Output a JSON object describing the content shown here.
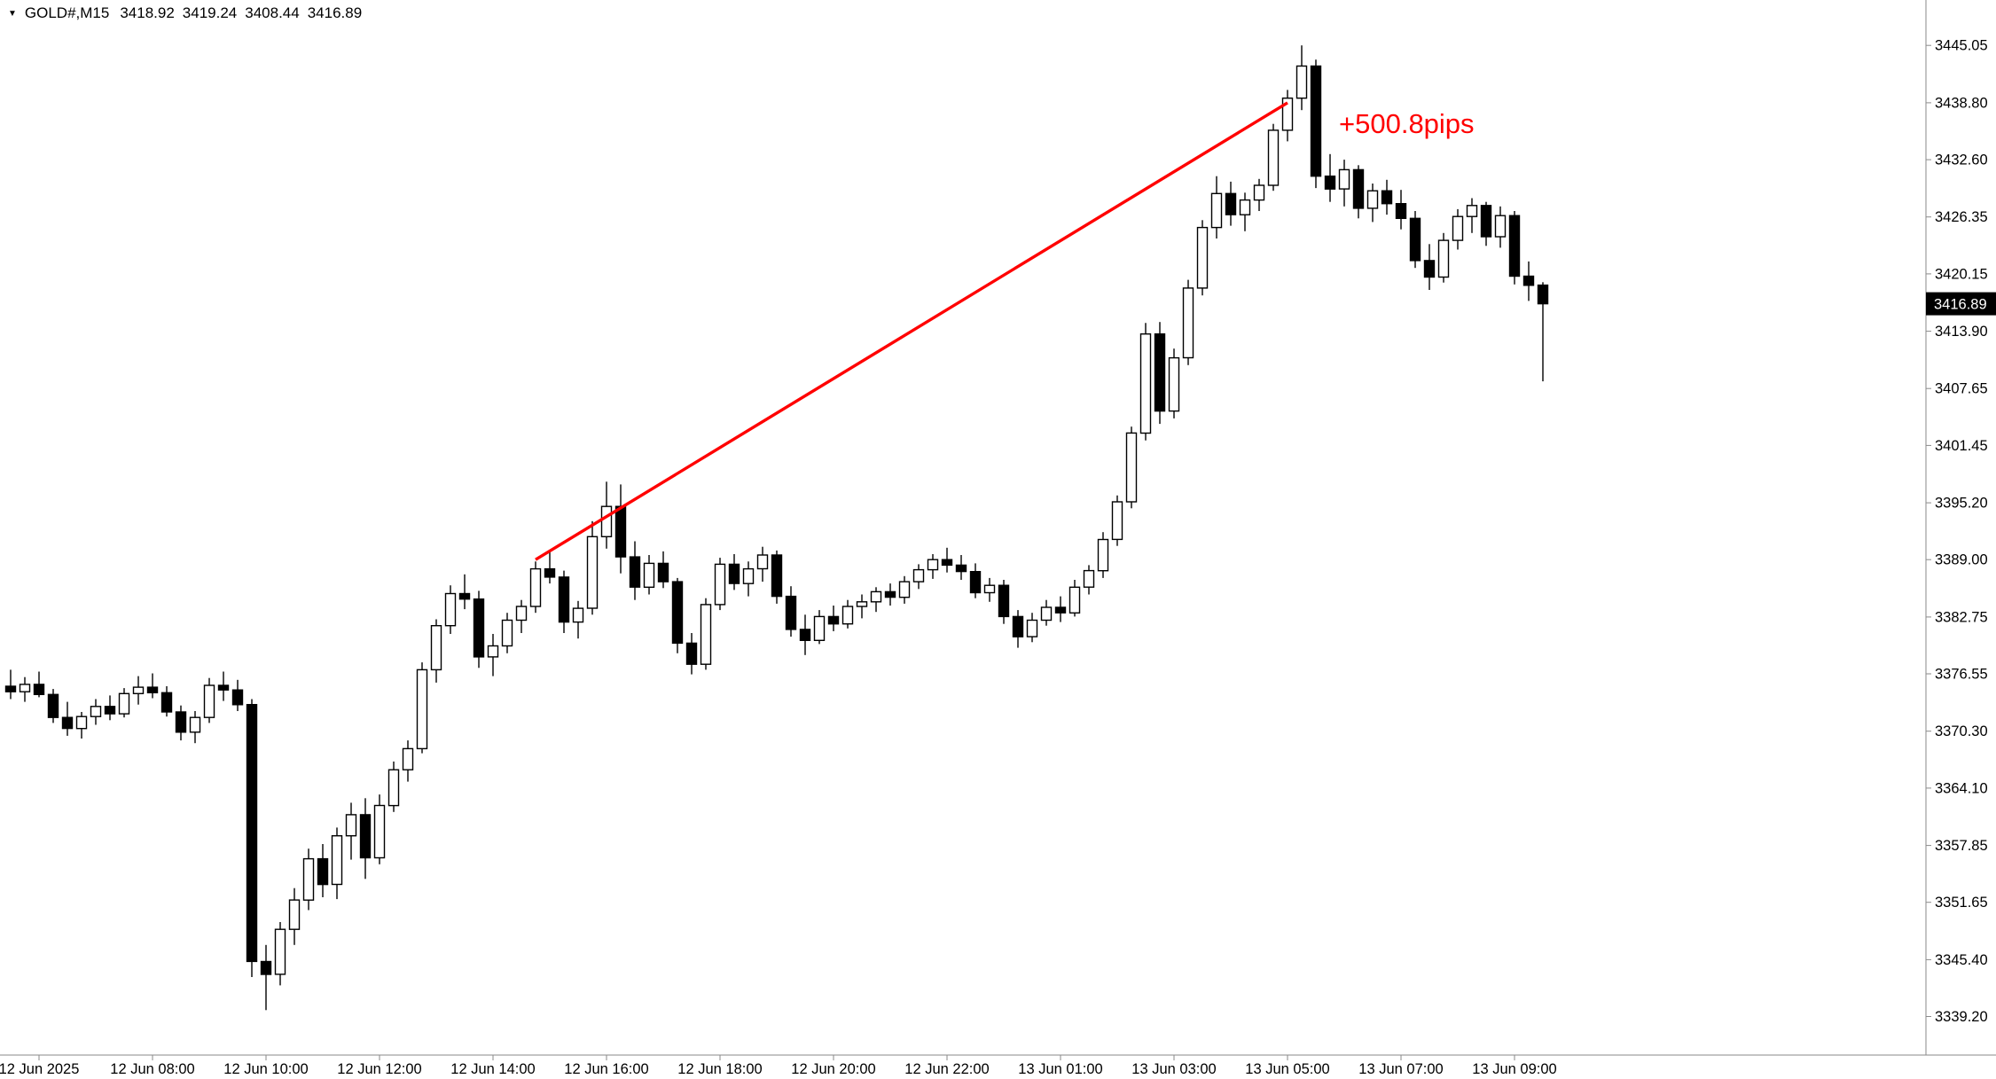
{
  "header": {
    "marker_icon": "▼",
    "symbol_period": "GOLD#,M15",
    "open": "3418.92",
    "high": "3419.24",
    "low": "3408.44",
    "close": "3416.89"
  },
  "colors": {
    "background": "#ffffff",
    "axis_line": "#8a8a8a",
    "text": "#000000",
    "bull_fill": "#ffffff",
    "bear_fill": "#000000",
    "candle_stroke": "#000000",
    "trendline": "#ff0000",
    "annotation": "#ff0000",
    "price_badge_bg": "#000000",
    "price_badge_text": "#ffffff"
  },
  "price_axis": {
    "labels": [
      "3445.05",
      "3438.80",
      "3432.60",
      "3426.35",
      "3420.15",
      "3413.90",
      "3407.65",
      "3401.45",
      "3395.20",
      "3389.00",
      "3382.75",
      "3376.55",
      "3370.30",
      "3364.10",
      "3357.85",
      "3351.65",
      "3345.40",
      "3339.20"
    ],
    "current": "3416.89",
    "current_value": 3416.89
  },
  "time_axis": {
    "labels": [
      {
        "text": "12 Jun 2025",
        "i": 2
      },
      {
        "text": "12 Jun 08:00",
        "i": 10
      },
      {
        "text": "12 Jun 10:00",
        "i": 18
      },
      {
        "text": "12 Jun 12:00",
        "i": 26
      },
      {
        "text": "12 Jun 14:00",
        "i": 34
      },
      {
        "text": "12 Jun 16:00",
        "i": 42
      },
      {
        "text": "12 Jun 18:00",
        "i": 50
      },
      {
        "text": "12 Jun 20:00",
        "i": 58
      },
      {
        "text": "12 Jun 22:00",
        "i": 66
      },
      {
        "text": "13 Jun 01:00",
        "i": 74
      },
      {
        "text": "13 Jun 03:00",
        "i": 82
      },
      {
        "text": "13 Jun 05:00",
        "i": 90
      },
      {
        "text": "13 Jun 07:00",
        "i": 98
      },
      {
        "text": "13 Jun 09:00",
        "i": 106
      }
    ]
  },
  "chart_data": {
    "type": "candlestick",
    "title": "GOLD#,M15",
    "symbol": "GOLD#",
    "timeframe": "M15",
    "grid": "off",
    "price_range": {
      "min": 3335.0,
      "max": 3450.0
    },
    "current_bar": {
      "open": 3418.92,
      "high": 3419.24,
      "low": 3408.44,
      "close": 3416.89
    },
    "annotations": {
      "trendline": {
        "from_index": 37,
        "from_price": 3389.0,
        "to_index": 90,
        "to_price": 3438.8,
        "label": "+500.8pips"
      }
    },
    "candles": [
      [
        3375.2,
        3377.0,
        3373.8,
        3374.6
      ],
      [
        3374.6,
        3376.2,
        3373.5,
        3375.4
      ],
      [
        3375.4,
        3376.8,
        3374.0,
        3374.3
      ],
      [
        3374.3,
        3374.9,
        3371.2,
        3371.8
      ],
      [
        3371.8,
        3373.5,
        3369.8,
        3370.6
      ],
      [
        3370.6,
        3372.4,
        3369.5,
        3371.9
      ],
      [
        3371.9,
        3373.8,
        3371.0,
        3373.0
      ],
      [
        3373.0,
        3374.2,
        3371.5,
        3372.2
      ],
      [
        3372.2,
        3375.0,
        3371.8,
        3374.4
      ],
      [
        3374.4,
        3376.3,
        3373.2,
        3375.1
      ],
      [
        3375.1,
        3376.6,
        3373.9,
        3374.5
      ],
      [
        3374.5,
        3375.2,
        3371.9,
        3372.4
      ],
      [
        3372.4,
        3373.1,
        3369.3,
        3370.2
      ],
      [
        3370.2,
        3372.5,
        3369.0,
        3371.8
      ],
      [
        3371.8,
        3376.1,
        3371.2,
        3375.3
      ],
      [
        3375.3,
        3376.8,
        3373.6,
        3374.8
      ],
      [
        3374.8,
        3375.9,
        3372.5,
        3373.2
      ],
      [
        3373.2,
        3373.8,
        3343.5,
        3345.2
      ],
      [
        3345.2,
        3347.0,
        3339.9,
        3343.8
      ],
      [
        3343.8,
        3349.5,
        3342.6,
        3348.7
      ],
      [
        3348.7,
        3353.2,
        3347.0,
        3351.9
      ],
      [
        3351.9,
        3357.5,
        3350.8,
        3356.4
      ],
      [
        3356.4,
        3358.0,
        3352.2,
        3353.6
      ],
      [
        3353.6,
        3359.8,
        3352.0,
        3358.9
      ],
      [
        3358.9,
        3362.5,
        3356.3,
        3361.2
      ],
      [
        3361.2,
        3363.0,
        3354.2,
        3356.5
      ],
      [
        3356.5,
        3363.4,
        3355.8,
        3362.2
      ],
      [
        3362.2,
        3367.0,
        3361.5,
        3366.1
      ],
      [
        3366.1,
        3369.3,
        3364.8,
        3368.4
      ],
      [
        3368.4,
        3377.8,
        3367.9,
        3377.0
      ],
      [
        3377.0,
        3382.5,
        3375.6,
        3381.8
      ],
      [
        3381.8,
        3386.2,
        3380.9,
        3385.3
      ],
      [
        3385.3,
        3387.4,
        3383.6,
        3384.7
      ],
      [
        3384.7,
        3385.6,
        3377.2,
        3378.4
      ],
      [
        3378.4,
        3380.9,
        3376.3,
        3379.6
      ],
      [
        3379.6,
        3383.2,
        3378.8,
        3382.4
      ],
      [
        3382.4,
        3384.6,
        3381.0,
        3383.9
      ],
      [
        3383.9,
        3388.8,
        3383.2,
        3388.0
      ],
      [
        3388.0,
        3389.8,
        3386.4,
        3387.1
      ],
      [
        3387.1,
        3387.8,
        3381.0,
        3382.2
      ],
      [
        3382.2,
        3384.5,
        3380.4,
        3383.7
      ],
      [
        3383.7,
        3393.2,
        3383.0,
        3391.5
      ],
      [
        3391.5,
        3397.5,
        3390.2,
        3394.8
      ],
      [
        3394.8,
        3397.2,
        3387.5,
        3389.3
      ],
      [
        3389.3,
        3391.0,
        3384.6,
        3386.0
      ],
      [
        3386.0,
        3389.5,
        3385.2,
        3388.6
      ],
      [
        3388.6,
        3389.9,
        3385.9,
        3386.6
      ],
      [
        3386.6,
        3387.0,
        3378.8,
        3379.9
      ],
      [
        3379.9,
        3381.0,
        3376.5,
        3377.6
      ],
      [
        3377.6,
        3384.8,
        3377.0,
        3384.1
      ],
      [
        3384.1,
        3389.2,
        3383.5,
        3388.5
      ],
      [
        3388.5,
        3389.6,
        3385.7,
        3386.4
      ],
      [
        3386.4,
        3388.8,
        3385.0,
        3388.0
      ],
      [
        3388.0,
        3390.4,
        3386.6,
        3389.5
      ],
      [
        3389.5,
        3390.0,
        3384.2,
        3385.0
      ],
      [
        3385.0,
        3386.1,
        3380.6,
        3381.4
      ],
      [
        3381.4,
        3383.0,
        3378.6,
        3380.2
      ],
      [
        3380.2,
        3383.5,
        3379.8,
        3382.8
      ],
      [
        3382.8,
        3384.0,
        3381.2,
        3382.0
      ],
      [
        3382.0,
        3384.6,
        3381.5,
        3383.9
      ],
      [
        3383.9,
        3385.2,
        3382.6,
        3384.4
      ],
      [
        3384.4,
        3386.0,
        3383.3,
        3385.5
      ],
      [
        3385.5,
        3386.4,
        3384.0,
        3384.9
      ],
      [
        3384.9,
        3387.2,
        3384.2,
        3386.6
      ],
      [
        3386.6,
        3388.5,
        3385.8,
        3387.9
      ],
      [
        3387.9,
        3389.6,
        3386.9,
        3389.0
      ],
      [
        3389.0,
        3390.3,
        3387.6,
        3388.4
      ],
      [
        3388.4,
        3389.5,
        3386.8,
        3387.7
      ],
      [
        3387.7,
        3388.6,
        3384.8,
        3385.4
      ],
      [
        3385.4,
        3387.0,
        3384.4,
        3386.2
      ],
      [
        3386.2,
        3386.8,
        3382.0,
        3382.8
      ],
      [
        3382.8,
        3383.5,
        3379.4,
        3380.6
      ],
      [
        3380.6,
        3383.2,
        3380.0,
        3382.4
      ],
      [
        3382.4,
        3384.6,
        3381.8,
        3383.8
      ],
      [
        3383.8,
        3385.0,
        3382.2,
        3383.2
      ],
      [
        3383.2,
        3386.8,
        3382.8,
        3386.0
      ],
      [
        3386.0,
        3388.4,
        3385.2,
        3387.8
      ],
      [
        3387.8,
        3392.0,
        3387.0,
        3391.2
      ],
      [
        3391.2,
        3396.0,
        3390.5,
        3395.3
      ],
      [
        3395.3,
        3403.5,
        3394.6,
        3402.8
      ],
      [
        3402.8,
        3414.8,
        3402.0,
        3413.6
      ],
      [
        3413.6,
        3414.9,
        3403.8,
        3405.2
      ],
      [
        3405.2,
        3412.0,
        3404.4,
        3411.0
      ],
      [
        3411.0,
        3419.5,
        3410.2,
        3418.6
      ],
      [
        3418.6,
        3426.0,
        3417.8,
        3425.2
      ],
      [
        3425.2,
        3430.8,
        3424.0,
        3428.9
      ],
      [
        3428.9,
        3430.2,
        3425.4,
        3426.6
      ],
      [
        3426.6,
        3429.0,
        3424.8,
        3428.2
      ],
      [
        3428.2,
        3430.5,
        3427.0,
        3429.8
      ],
      [
        3429.8,
        3436.5,
        3429.2,
        3435.8
      ],
      [
        3435.8,
        3440.2,
        3434.6,
        3439.3
      ],
      [
        3439.3,
        3445.05,
        3438.0,
        3442.8
      ],
      [
        3442.8,
        3443.5,
        3429.5,
        3430.8
      ],
      [
        3430.8,
        3433.2,
        3428.0,
        3429.4
      ],
      [
        3429.4,
        3432.6,
        3427.5,
        3431.5
      ],
      [
        3431.5,
        3432.0,
        3426.2,
        3427.3
      ],
      [
        3427.3,
        3430.0,
        3425.8,
        3429.2
      ],
      [
        3429.2,
        3430.4,
        3426.6,
        3427.8
      ],
      [
        3427.8,
        3429.3,
        3425.0,
        3426.2
      ],
      [
        3426.2,
        3427.0,
        3420.8,
        3421.6
      ],
      [
        3421.6,
        3423.4,
        3418.4,
        3419.8
      ],
      [
        3419.8,
        3424.6,
        3419.2,
        3423.8
      ],
      [
        3423.8,
        3427.2,
        3422.8,
        3426.4
      ],
      [
        3426.4,
        3428.4,
        3424.6,
        3427.6
      ],
      [
        3427.6,
        3428.0,
        3423.2,
        3424.2
      ],
      [
        3424.2,
        3427.5,
        3423.0,
        3426.5
      ],
      [
        3426.5,
        3427.0,
        3419.0,
        3419.9
      ],
      [
        3419.9,
        3421.5,
        3417.2,
        3418.9
      ],
      [
        3418.92,
        3419.24,
        3408.44,
        3416.89
      ]
    ]
  }
}
